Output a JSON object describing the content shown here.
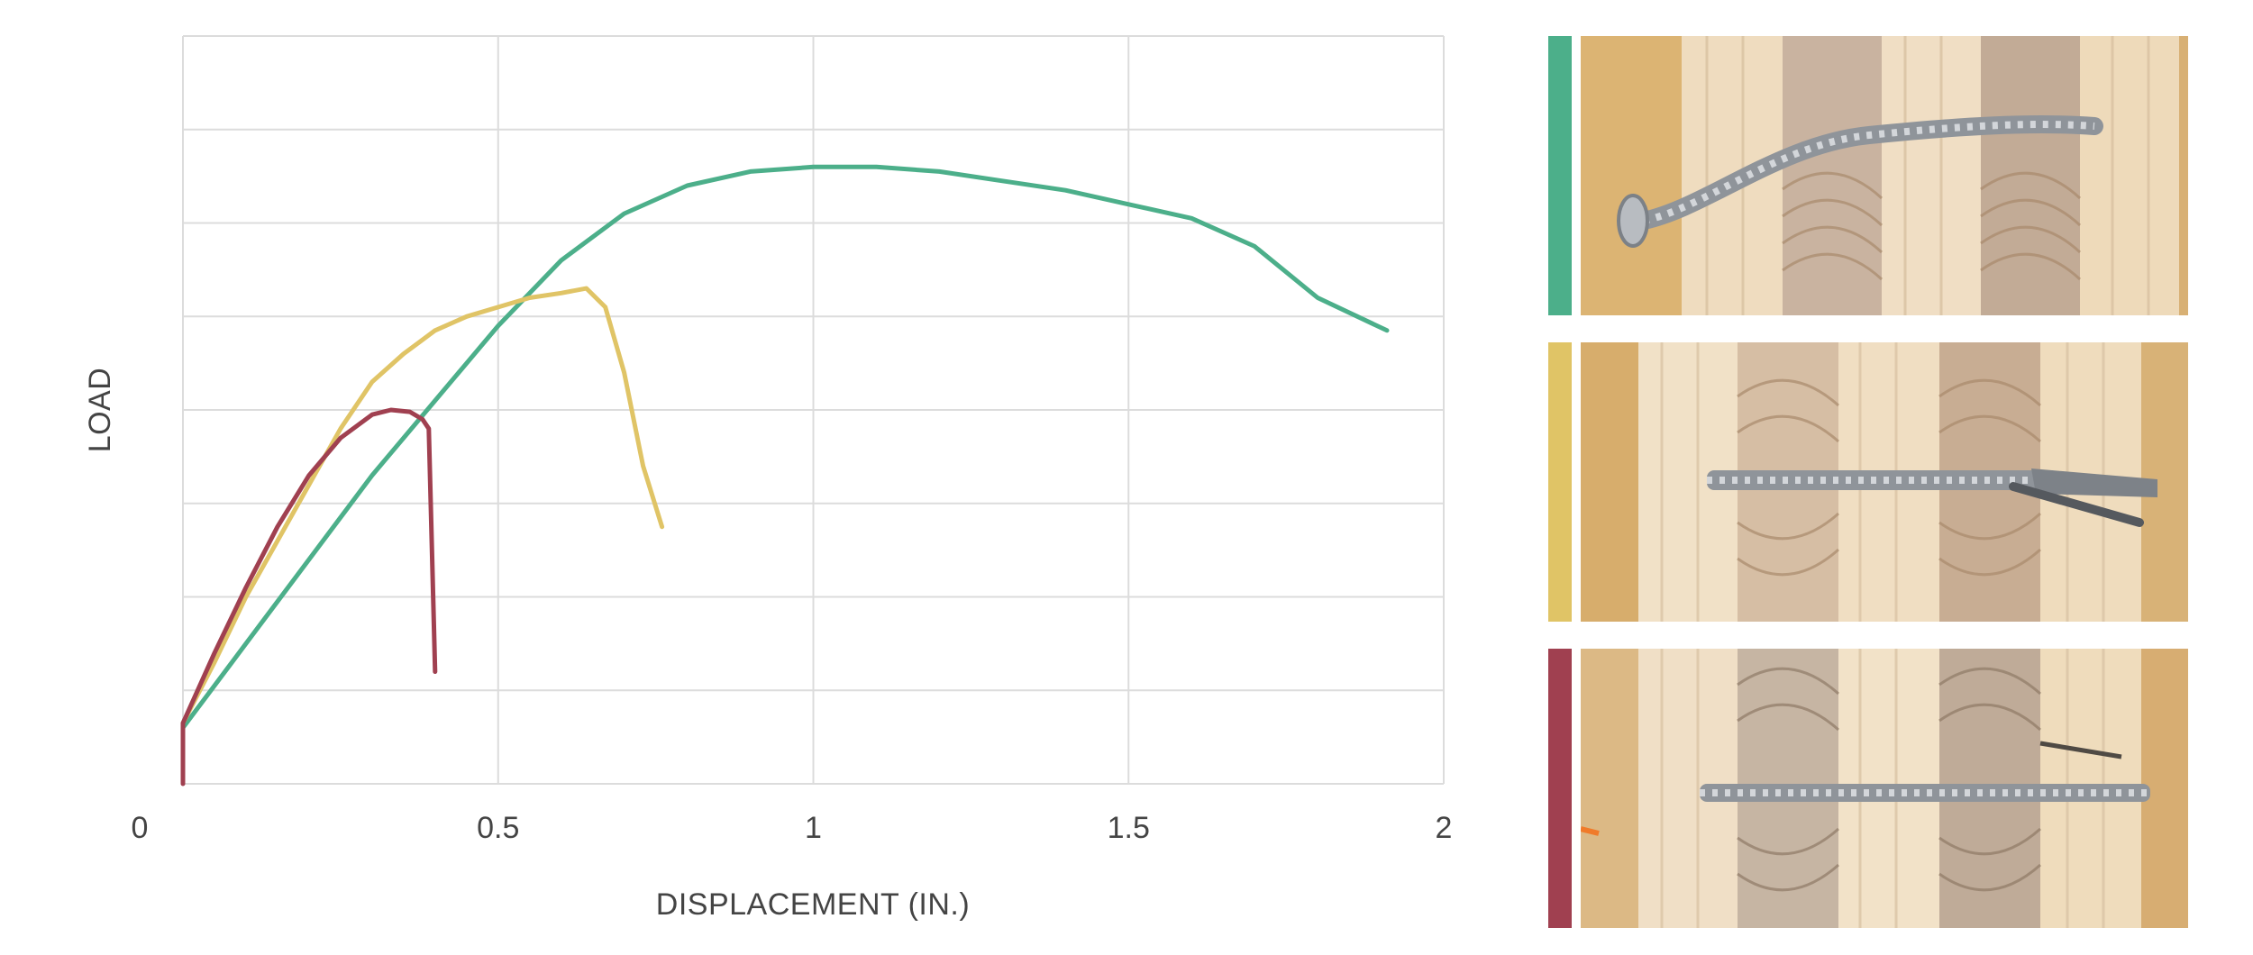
{
  "chart_data": {
    "type": "line",
    "title": "",
    "xlabel": "DISPLACEMENT (IN.)",
    "ylabel": "LOAD",
    "xlim": [
      0,
      2
    ],
    "ylim": [
      0,
      8
    ],
    "x_ticks": [
      "0",
      "0.5",
      "1",
      "1.5",
      "2"
    ],
    "grid": true,
    "legend": "none",
    "series": [
      {
        "color": "#4caf8a",
        "points": [
          [
            0,
            0.6
          ],
          [
            0.1,
            1.5
          ],
          [
            0.2,
            2.4
          ],
          [
            0.3,
            3.3
          ],
          [
            0.4,
            4.1
          ],
          [
            0.5,
            4.9
          ],
          [
            0.6,
            5.6
          ],
          [
            0.7,
            6.1
          ],
          [
            0.8,
            6.4
          ],
          [
            0.9,
            6.55
          ],
          [
            1.0,
            6.6
          ],
          [
            1.1,
            6.6
          ],
          [
            1.2,
            6.55
          ],
          [
            1.3,
            6.45
          ],
          [
            1.4,
            6.35
          ],
          [
            1.5,
            6.2
          ],
          [
            1.6,
            6.05
          ],
          [
            1.7,
            5.75
          ],
          [
            1.8,
            5.2
          ],
          [
            1.91,
            4.85
          ]
        ]
      },
      {
        "color": "#e0c466",
        "points": [
          [
            0,
            0.65
          ],
          [
            0.05,
            1.3
          ],
          [
            0.1,
            2.0
          ],
          [
            0.15,
            2.6
          ],
          [
            0.2,
            3.2
          ],
          [
            0.25,
            3.8
          ],
          [
            0.3,
            4.3
          ],
          [
            0.35,
            4.6
          ],
          [
            0.4,
            4.85
          ],
          [
            0.45,
            5.0
          ],
          [
            0.5,
            5.1
          ],
          [
            0.55,
            5.2
          ],
          [
            0.6,
            5.25
          ],
          [
            0.64,
            5.3
          ],
          [
            0.67,
            5.1
          ],
          [
            0.7,
            4.4
          ],
          [
            0.73,
            3.4
          ],
          [
            0.76,
            2.75
          ]
        ]
      },
      {
        "color": "#a04050",
        "points": [
          [
            0,
            0
          ],
          [
            0,
            0.65
          ],
          [
            0.05,
            1.4
          ],
          [
            0.1,
            2.1
          ],
          [
            0.15,
            2.75
          ],
          [
            0.2,
            3.3
          ],
          [
            0.25,
            3.7
          ],
          [
            0.3,
            3.95
          ],
          [
            0.33,
            4.0
          ],
          [
            0.36,
            3.98
          ],
          [
            0.38,
            3.9
          ],
          [
            0.39,
            3.8
          ],
          [
            0.395,
            2.5
          ],
          [
            0.4,
            1.2
          ]
        ]
      }
    ]
  },
  "legend_swatches": [
    {
      "color": "#4caf8a",
      "image": "bent-screw-in-wood-photo"
    },
    {
      "color": "#e0c466",
      "image": "fractured-screw-in-wood-photo"
    },
    {
      "color": "#a04050",
      "image": "straight-screw-in-wood-photo"
    }
  ]
}
